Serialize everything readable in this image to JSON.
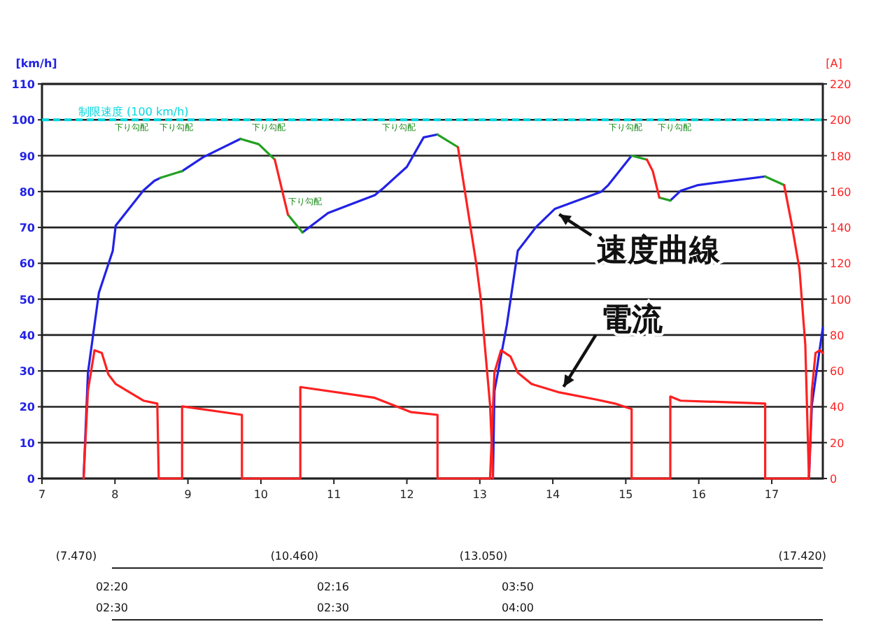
{
  "chart_data": {
    "type": "line",
    "ylabel": "[km/h]",
    "y2label": "[A]",
    "xlim": [
      7,
      17.7
    ],
    "xticks": [
      7,
      8,
      9,
      10,
      11,
      12,
      13,
      14,
      15,
      16,
      17
    ],
    "ylim": [
      0,
      110
    ],
    "yticks": [
      0,
      10,
      20,
      30,
      40,
      50,
      60,
      70,
      80,
      90,
      100,
      110
    ],
    "y2lim": [
      0,
      220
    ],
    "y2ticks": [
      0,
      20,
      40,
      60,
      80,
      100,
      120,
      140,
      160,
      180,
      200,
      220
    ],
    "grid": "y",
    "marker": "none",
    "line_style": "solid",
    "ref_lines": [
      {
        "axis": "y",
        "value": 100,
        "label": "制限速度 (100 km/h)",
        "color": "#00d8e0",
        "line_style": "dashed"
      }
    ],
    "series": [
      {
        "color": "#2222e6",
        "x": [
          7.57,
          7.63,
          7.78,
          7.97,
          8.01,
          8.39,
          8.54,
          8.62
        ],
        "values": [
          0,
          29.5,
          51.8,
          63.5,
          70.5,
          80.3,
          83,
          83.8
        ]
      },
      {
        "color": "#2222e6",
        "x": [
          8.92,
          9.21,
          9.72
        ],
        "values": [
          85.7,
          89.6,
          94.7
        ]
      },
      {
        "color": "#2222e6",
        "x": [
          10.57,
          10.92,
          11.56,
          11.68,
          12.0,
          12.23,
          12.42
        ],
        "values": [
          68.6,
          74,
          79,
          81,
          86.9,
          95.1,
          95.9
        ]
      },
      {
        "color": "#2222e6",
        "x": [
          13.18,
          13.2,
          13.37,
          13.52,
          13.77,
          14.03,
          14.66,
          14.76,
          15.08
        ],
        "values": [
          0,
          24.4,
          42.8,
          63.5,
          70.1,
          75.2,
          79.9,
          81.8,
          90
        ]
      },
      {
        "color": "#2222e6",
        "x": [
          15.61,
          15.75,
          15.99,
          16.91
        ],
        "values": [
          77.5,
          80.2,
          81.8,
          84.2
        ]
      },
      {
        "color": "#2222e6",
        "x": [
          17.51,
          17.55,
          17.65,
          17.7
        ],
        "values": [
          0,
          20.5,
          35,
          42
        ]
      },
      {
        "color": "#22a022",
        "x": [
          8.62,
          8.92
        ],
        "values": [
          83.8,
          85.7
        ]
      },
      {
        "color": "#22a022",
        "x": [
          9.72,
          9.97,
          10.19
        ],
        "values": [
          94.7,
          93.2,
          88.9
        ]
      },
      {
        "color": "#22a022",
        "x": [
          10.37,
          10.57
        ],
        "values": [
          73.6,
          68.6
        ]
      },
      {
        "color": "#22a022",
        "x": [
          12.42,
          12.7
        ],
        "values": [
          95.9,
          92.4
        ]
      },
      {
        "color": "#22a022",
        "x": [
          15.08,
          15.29
        ],
        "values": [
          90,
          88.9
        ]
      },
      {
        "color": "#22a022",
        "x": [
          15.46,
          15.61
        ],
        "values": [
          78.3,
          77.5
        ]
      },
      {
        "color": "#22a022",
        "x": [
          16.91,
          17.17
        ],
        "values": [
          84.2,
          81.8
        ]
      },
      {
        "color": "#ff2020",
        "x": [
          10.19,
          10.37
        ],
        "values": [
          88.9,
          73.6
        ]
      },
      {
        "color": "#ff2020",
        "x": [
          12.7,
          12.95,
          13.01,
          13.14,
          13.17,
          13.18
        ],
        "values": [
          92.4,
          60,
          50.5,
          20.5,
          6,
          0
        ]
      },
      {
        "color": "#ff2020",
        "x": [
          15.29,
          15.37,
          15.46
        ],
        "values": [
          88.9,
          85.7,
          78.3
        ]
      },
      {
        "color": "#ff2020",
        "x": [
          17.17,
          17.27,
          17.38,
          17.46,
          17.51
        ],
        "values": [
          81.8,
          71.3,
          58.4,
          37.3,
          0
        ]
      },
      {
        "color": "#ff2020",
        "axis": "y2",
        "x": [
          7.57,
          7.63,
          7.72,
          7.82,
          7.91,
          8.01,
          8.39,
          8.58,
          8.6,
          8.92,
          8.92,
          9.74,
          9.74,
          10.54,
          10.54,
          11.56,
          11.81,
          12.06,
          12.42,
          12.42,
          13.14,
          13.2,
          13.29,
          13.42,
          13.52,
          13.71,
          14.09,
          14.6,
          14.85,
          15.08,
          15.08,
          15.61,
          15.61,
          15.75,
          16.91,
          16.91,
          17.51,
          17.55,
          17.6,
          17.66,
          17.7
        ],
        "values": [
          0,
          49,
          71.5,
          70,
          58,
          52.7,
          43.4,
          41.8,
          0,
          0,
          40.2,
          35.5,
          0,
          0,
          51,
          45,
          41,
          37,
          35.5,
          0,
          0,
          59,
          71.5,
          68,
          59,
          52.7,
          48,
          44,
          41.8,
          38.7,
          0,
          0,
          45.7,
          43.4,
          41.8,
          0,
          0,
          49,
          70,
          71.5,
          70
        ]
      }
    ],
    "annotations": [
      {
        "text": "速度曲線",
        "x": 14.03,
        "y": 75.2
      },
      {
        "text": "電流",
        "x": 14.09,
        "y": 24
      },
      "下り勾配",
      "下り勾配",
      "下り勾配",
      "下り勾配",
      "下り勾配",
      "下り勾配",
      "下り勾配",
      "(7.470)",
      "(10.460)",
      "(13.050)",
      "(17.420)",
      "02:20",
      "02:30",
      "02:16",
      "02:30",
      "03:50",
      "04:00"
    ]
  }
}
